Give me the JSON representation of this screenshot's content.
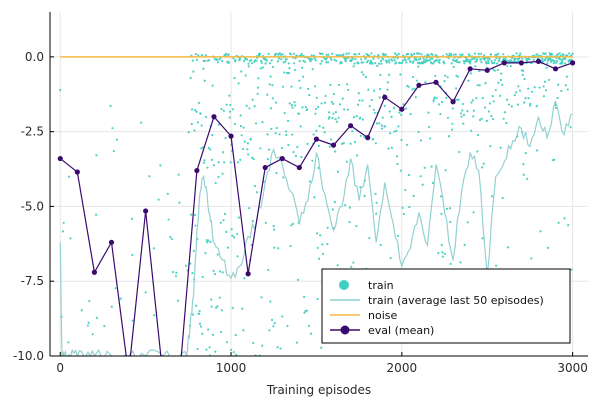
{
  "chart_data": {
    "type": "scatter",
    "xlabel": "Training episodes",
    "ylabel": "",
    "xlim": [
      -60,
      3090
    ],
    "ylim": [
      -10,
      1.5
    ],
    "grid": true,
    "legend_position": "bottom-right",
    "x_ticks": [
      0,
      1000,
      2000,
      3000
    ],
    "x_tick_labels": [
      "0",
      "1000",
      "2000",
      "3000"
    ],
    "y_ticks": [
      0,
      -2.5,
      -5,
      -7.5,
      -10
    ],
    "y_tick_labels": [
      "0.0",
      "-2.5",
      "-5.0",
      "-7.5",
      "-10.0"
    ],
    "colors": {
      "train": "#40d0c0",
      "train_avg": "#8ecfcf",
      "noise": "#f5b942",
      "eval": "#3b0a6e"
    },
    "series": [
      {
        "name": "train",
        "kind": "scatter",
        "note": "~3000 episode returns; dense band near 0 after ~800, widely scattered below"
      },
      {
        "name": "train (average last 50 episodes)",
        "kind": "line",
        "x": [
          0,
          10,
          20,
          60,
          100,
          150,
          200,
          300,
          400,
          500,
          600,
          700,
          740,
          760,
          780,
          800,
          820,
          840,
          860,
          880,
          900,
          950,
          1000,
          1050,
          1100,
          1150,
          1200,
          1250,
          1300,
          1350,
          1400,
          1450,
          1500,
          1550,
          1600,
          1650,
          1700,
          1750,
          1800,
          1850,
          1900,
          1950,
          2000,
          2050,
          2100,
          2150,
          2200,
          2250,
          2300,
          2350,
          2400,
          2450,
          2500,
          2550,
          2600,
          2650,
          2700,
          2750,
          2800,
          2850,
          2900,
          2950,
          3000
        ],
        "y": [
          -6.2,
          -10,
          -10,
          -10,
          -10,
          -10,
          -10,
          -10,
          -10,
          -10,
          -10,
          -10,
          -10,
          -9.0,
          -8.0,
          -5.8,
          -4.5,
          -4.0,
          -4.6,
          -5.5,
          -6.2,
          -6.8,
          -7.4,
          -7.0,
          -6.0,
          -5.5,
          -4.2,
          -3.1,
          -3.6,
          -4.5,
          -5.6,
          -4.8,
          -3.2,
          -4.6,
          -5.8,
          -5.0,
          -3.4,
          -4.8,
          -3.6,
          -6.2,
          -4.2,
          -5.6,
          -7.0,
          -6.4,
          -5.2,
          -6.3,
          -3.6,
          -5.2,
          -6.8,
          -4.5,
          -3.2,
          -3.8,
          -7.3,
          -4.0,
          -3.5,
          -2.8,
          -2.4,
          -3.0,
          -2.0,
          -2.7,
          -1.5,
          -2.6,
          -1.9
        ]
      },
      {
        "name": "noise",
        "kind": "line",
        "x": [
          0,
          3000
        ],
        "y": [
          0.0,
          0.0
        ]
      },
      {
        "name": "eval (mean)",
        "kind": "line+markers",
        "x": [
          0,
          100,
          200,
          300,
          400,
          500,
          600,
          700,
          800,
          900,
          1000,
          1100,
          1200,
          1300,
          1400,
          1500,
          1600,
          1700,
          1800,
          1900,
          2000,
          2100,
          2200,
          2300,
          2400,
          2500,
          2600,
          2700,
          2800,
          2900,
          3000
        ],
        "y": [
          -3.4,
          -3.85,
          -7.2,
          -6.2,
          -10.6,
          -5.15,
          -10.6,
          -10.6,
          -3.8,
          -2.0,
          -2.65,
          -7.25,
          -3.7,
          -3.4,
          -3.7,
          -2.75,
          -2.95,
          -2.3,
          -2.7,
          -1.35,
          -1.75,
          -0.95,
          -0.85,
          -1.5,
          -0.4,
          -0.45,
          -0.2,
          -0.2,
          -0.15,
          -0.4,
          -0.2
        ]
      }
    ]
  },
  "legend": [
    {
      "label": "train"
    },
    {
      "label": "train (average last 50 episodes)"
    },
    {
      "label": "noise"
    },
    {
      "label": "eval (mean)"
    }
  ]
}
